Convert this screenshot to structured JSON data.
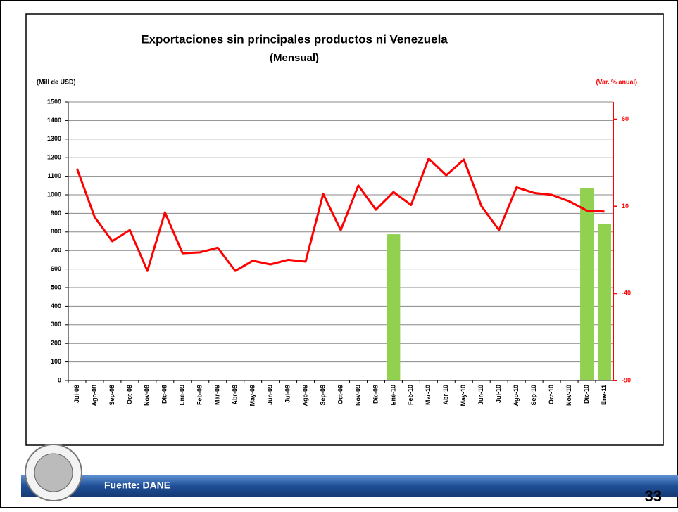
{
  "chart_data": {
    "type": "bar-line",
    "title": "Exportaciones sin principales productos ni Venezuela",
    "subtitle": "(Mensual)",
    "y_label": "(Mill de USD)",
    "y2_label": "(Var. % anual)",
    "categories": [
      "Jul-08",
      "Ago-08",
      "Sep-08",
      "Oct-08",
      "Nov-08",
      "Dic-08",
      "Ene-09",
      "Feb-09",
      "Mar-09",
      "Abr-09",
      "May-09",
      "Jun-09",
      "Jul-09",
      "Ago-09",
      "Sep-09",
      "Oct-09",
      "Nov-09",
      "Dic-09",
      "Ene-10",
      "Feb-10",
      "Mar-10",
      "Abr-10",
      "May-10",
      "Jun-10",
      "Jul-10",
      "Ago-10",
      "Sep-10",
      "Oct-10",
      "Nov-10",
      "Dic-10",
      "Ene-11"
    ],
    "series": [
      {
        "type": "line",
        "color": "#ff0000",
        "values": [
          1140,
          880,
          750,
          810,
          590,
          905,
          685,
          690,
          715,
          590,
          645,
          625,
          650,
          640,
          1005,
          810,
          1050,
          920,
          1015,
          945,
          1195,
          1105,
          1190,
          940,
          810,
          1040,
          1010,
          1000,
          965,
          915,
          910
        ]
      },
      {
        "type": "bar",
        "axis": "y2",
        "color": "#92d050",
        "values": [
          null,
          null,
          null,
          null,
          null,
          null,
          null,
          null,
          null,
          null,
          null,
          null,
          null,
          null,
          null,
          null,
          null,
          null,
          -6,
          null,
          null,
          null,
          null,
          null,
          null,
          null,
          null,
          null,
          null,
          20.5,
          0
        ]
      }
    ],
    "ylim": [
      0,
      1500
    ],
    "yticks": [
      0,
      100,
      200,
      300,
      400,
      500,
      600,
      700,
      800,
      900,
      1000,
      1100,
      1200,
      1300,
      1400,
      1500
    ],
    "y2lim": [
      -90,
      70
    ],
    "y2ticks": [
      -90,
      -40,
      10,
      60
    ],
    "grid": true,
    "y2_color": "#ff0000",
    "source": "Fuente: DANE",
    "page_number": "33"
  }
}
